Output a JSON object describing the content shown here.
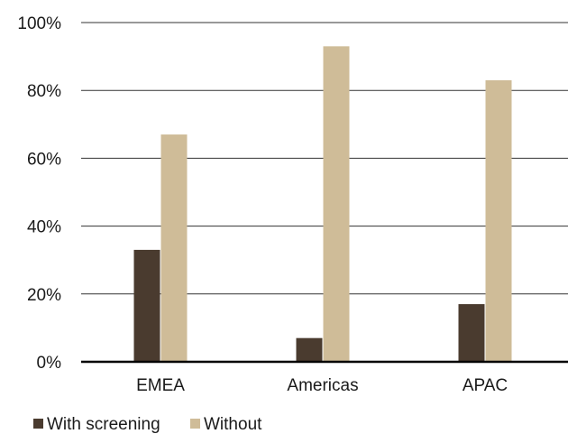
{
  "chart_data": {
    "type": "bar",
    "title": "",
    "xlabel": "",
    "ylabel": "",
    "categories": [
      "EMEA",
      "Americas",
      "APAC"
    ],
    "series": [
      {
        "name": "With screening",
        "color": "#4a3b2f",
        "values": [
          33,
          7,
          17
        ]
      },
      {
        "name": "Without",
        "color": "#cfbc98",
        "values": [
          67,
          93,
          83
        ]
      }
    ],
    "ylim": [
      0,
      100
    ],
    "yticks": [
      0,
      20,
      40,
      60,
      80,
      100
    ],
    "ytick_labels": [
      "0%",
      "20%",
      "40%",
      "60%",
      "80%",
      "100%"
    ],
    "grid": true,
    "legend_position": "bottom-left"
  }
}
